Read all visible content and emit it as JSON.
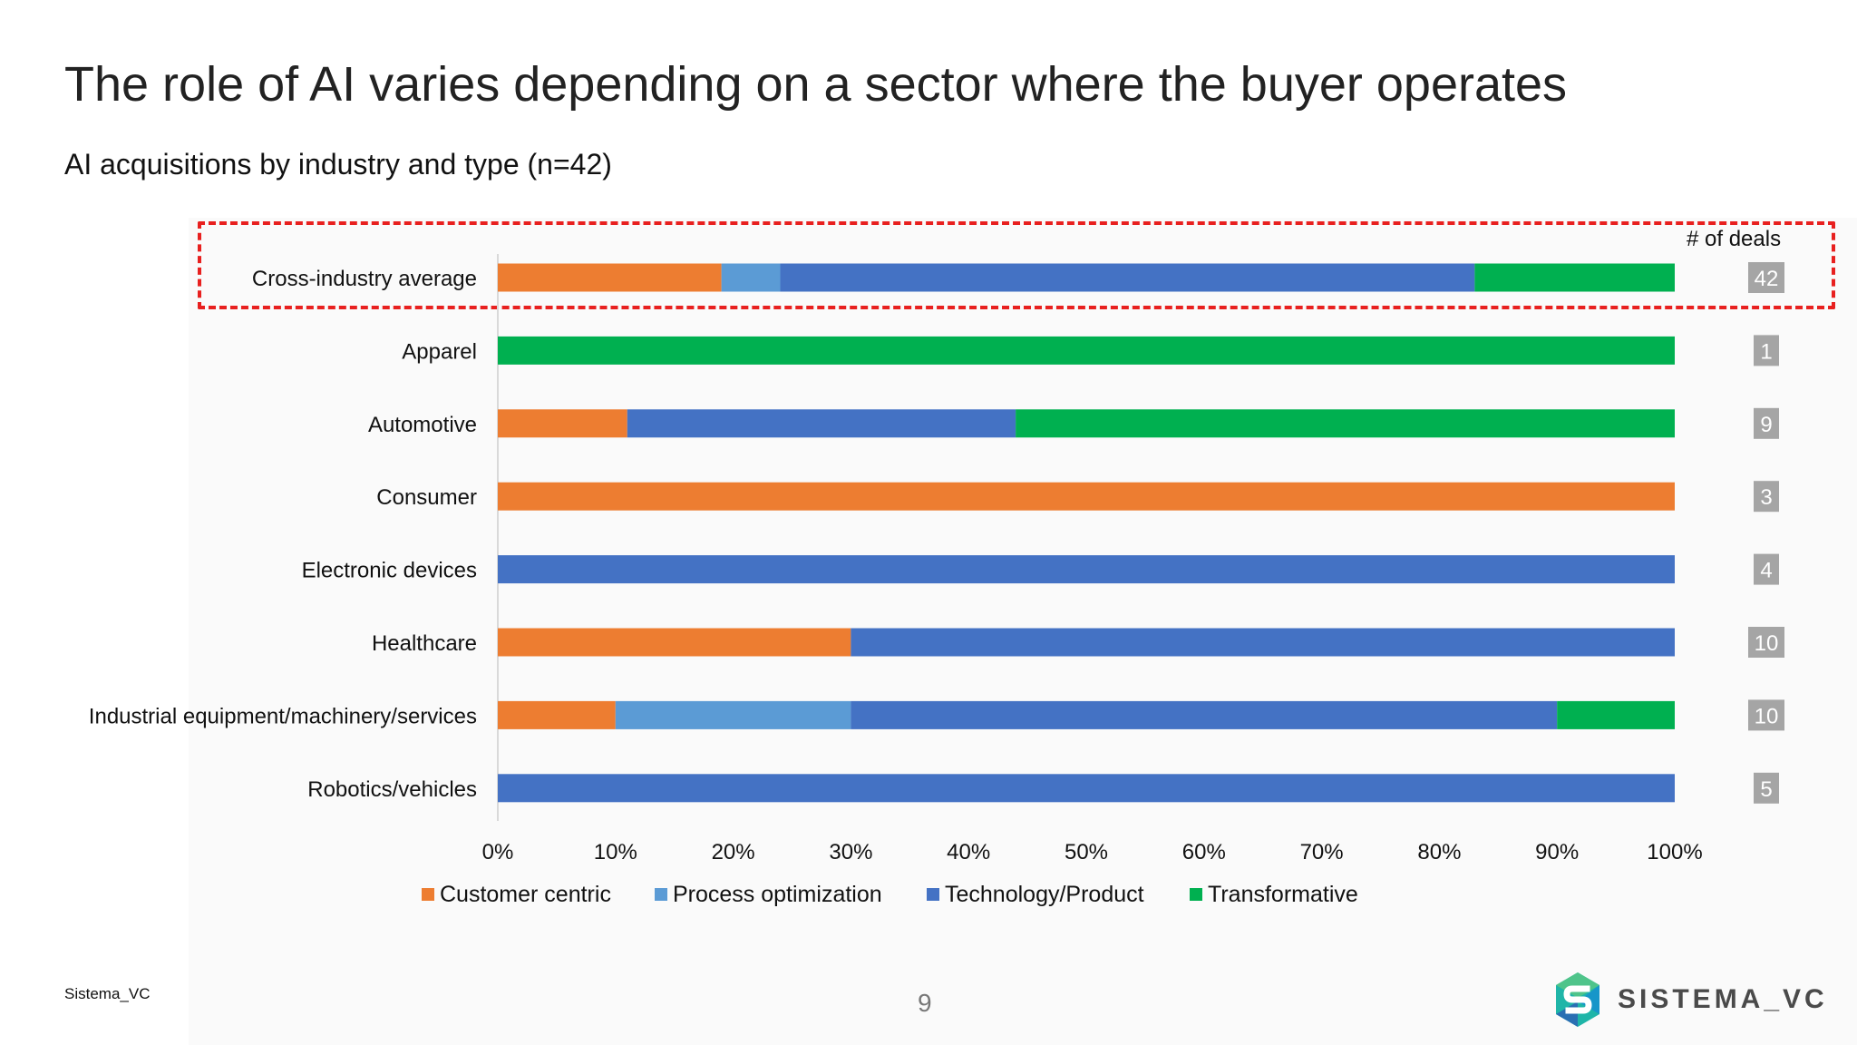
{
  "slide": {
    "title": "The role of AI varies depending on a sector where the buyer operates",
    "subtitle": "AI acquisitions by industry and type (n=42)",
    "deals_header": "# of deals",
    "footer_source": "Sistema_VC",
    "page_number": "9",
    "brand_name": "SISTEMA_VC",
    "brand_logo_icon": "hexagon-s-logo-icon"
  },
  "colors": {
    "customer_centric": "#ed7d31",
    "process_optimization": "#5b9bd5",
    "technology_product": "#4472c4",
    "transformative": "#00b050",
    "deals_badge": "#a5a5a5",
    "highlight": "#e8201f"
  },
  "chart_data": {
    "type": "bar",
    "orientation": "horizontal",
    "stacked": "100%",
    "title": "AI acquisitions by industry and type (n=42)",
    "categories": [
      "Cross-industry average",
      "Apparel",
      "Automotive",
      "Consumer",
      "Electronic devices",
      "Healthcare",
      "Industrial equipment/machinery/services",
      "Robotics/vehicles"
    ],
    "series": [
      {
        "name": "Customer centric",
        "values": [
          19,
          0,
          11,
          100,
          0,
          30,
          10,
          0
        ]
      },
      {
        "name": "Process optimization",
        "values": [
          5,
          0,
          0,
          0,
          0,
          0,
          20,
          0
        ]
      },
      {
        "name": "Technology/Product",
        "values": [
          59,
          0,
          33,
          0,
          100,
          70,
          60,
          100
        ]
      },
      {
        "name": "Transformative",
        "values": [
          17,
          100,
          56,
          0,
          0,
          0,
          10,
          0
        ]
      }
    ],
    "deals": [
      42,
      1,
      9,
      3,
      4,
      10,
      10,
      5
    ],
    "xlim": [
      0,
      100
    ],
    "x_ticks": [
      "0%",
      "10%",
      "20%",
      "30%",
      "40%",
      "50%",
      "60%",
      "70%",
      "80%",
      "90%",
      "100%"
    ],
    "legend": [
      "Customer centric",
      "Process optimization",
      "Technology/Product",
      "Transformative"
    ],
    "legend_position": "bottom",
    "grid": false,
    "highlighted_category": "Cross-industry average"
  }
}
